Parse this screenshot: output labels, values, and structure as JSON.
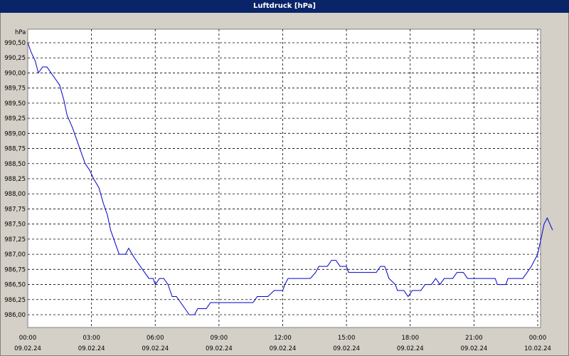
{
  "window": {
    "title": "Luftdruck [hPa]"
  },
  "colors": {
    "line": "#0000cc",
    "titlebar": "#0a246a",
    "plot_bg": "#ffffff",
    "window_bg": "#d4d0c8"
  },
  "chart_data": {
    "type": "line",
    "title": "Luftdruck [hPa]",
    "y_unit_label": "hPa",
    "ylim": [
      985.875,
      990.5
    ],
    "y_ticks": [
      "990,50",
      "990,25",
      "990,00",
      "989,75",
      "989,50",
      "989,25",
      "989,00",
      "988,75",
      "988,50",
      "988,25",
      "988,00",
      "987,75",
      "987,50",
      "987,25",
      "987,00",
      "986,75",
      "986,50",
      "986,25",
      "986,00"
    ],
    "y_tick_values": [
      990.5,
      990.25,
      990.0,
      989.75,
      989.5,
      989.25,
      989.0,
      988.75,
      988.5,
      988.25,
      988.0,
      987.75,
      987.5,
      987.25,
      987.0,
      986.75,
      986.5,
      986.25,
      986.0
    ],
    "x_range_hours": [
      0,
      24
    ],
    "x_ticks": [
      {
        "hour": 0,
        "time": "00:00",
        "date": "09.02.24"
      },
      {
        "hour": 3,
        "time": "03:00",
        "date": "09.02.24"
      },
      {
        "hour": 6,
        "time": "06:00",
        "date": "09.02.24"
      },
      {
        "hour": 9,
        "time": "09:00",
        "date": "09.02.24"
      },
      {
        "hour": 12,
        "time": "12:00",
        "date": "09.02.24"
      },
      {
        "hour": 15,
        "time": "15:00",
        "date": "09.02.24"
      },
      {
        "hour": 18,
        "time": "18:00",
        "date": "09.02.24"
      },
      {
        "hour": 21,
        "time": "21:00",
        "date": "09.02.24"
      },
      {
        "hour": 24,
        "time": "00:00",
        "date": "10.02.24"
      }
    ],
    "grid": true,
    "series": [
      {
        "points": [
          [
            0.0,
            990.5
          ],
          [
            0.15,
            990.35
          ],
          [
            0.35,
            990.2
          ],
          [
            0.5,
            990.0
          ],
          [
            0.7,
            990.1
          ],
          [
            0.9,
            990.1
          ],
          [
            1.1,
            990.0
          ],
          [
            1.3,
            989.9
          ],
          [
            1.5,
            989.8
          ],
          [
            1.7,
            989.55
          ],
          [
            1.85,
            989.3
          ],
          [
            2.1,
            989.1
          ],
          [
            2.3,
            988.9
          ],
          [
            2.5,
            988.7
          ],
          [
            2.7,
            988.5
          ],
          [
            2.9,
            988.4
          ],
          [
            3.1,
            988.25
          ],
          [
            3.35,
            988.1
          ],
          [
            3.55,
            987.85
          ],
          [
            3.75,
            987.65
          ],
          [
            3.9,
            987.4
          ],
          [
            4.1,
            987.2
          ],
          [
            4.3,
            987.0
          ],
          [
            4.6,
            987.0
          ],
          [
            4.75,
            987.1
          ],
          [
            5.0,
            986.95
          ],
          [
            5.3,
            986.8
          ],
          [
            5.5,
            986.7
          ],
          [
            5.7,
            986.6
          ],
          [
            5.9,
            986.6
          ],
          [
            6.0,
            986.5
          ],
          [
            6.2,
            986.6
          ],
          [
            6.4,
            986.6
          ],
          [
            6.6,
            986.5
          ],
          [
            6.8,
            986.3
          ],
          [
            7.0,
            986.3
          ],
          [
            7.2,
            986.2
          ],
          [
            7.4,
            986.1
          ],
          [
            7.6,
            986.0
          ],
          [
            7.85,
            986.0
          ],
          [
            8.0,
            986.1
          ],
          [
            8.4,
            986.1
          ],
          [
            8.6,
            986.2
          ],
          [
            9.0,
            986.2
          ],
          [
            10.0,
            986.2
          ],
          [
            10.6,
            986.2
          ],
          [
            10.8,
            986.3
          ],
          [
            11.3,
            986.3
          ],
          [
            11.6,
            986.4
          ],
          [
            12.0,
            986.4
          ],
          [
            12.1,
            986.5
          ],
          [
            12.25,
            986.6
          ],
          [
            13.0,
            986.6
          ],
          [
            13.3,
            986.6
          ],
          [
            13.55,
            986.7
          ],
          [
            13.7,
            986.8
          ],
          [
            14.1,
            986.8
          ],
          [
            14.3,
            986.9
          ],
          [
            14.5,
            986.9
          ],
          [
            14.7,
            986.8
          ],
          [
            15.0,
            986.8
          ],
          [
            15.1,
            986.7
          ],
          [
            16.0,
            986.7
          ],
          [
            16.4,
            986.7
          ],
          [
            16.6,
            986.8
          ],
          [
            16.8,
            986.8
          ],
          [
            17.0,
            986.6
          ],
          [
            17.3,
            986.5
          ],
          [
            17.4,
            986.4
          ],
          [
            17.7,
            986.4
          ],
          [
            17.9,
            986.3
          ],
          [
            18.1,
            986.4
          ],
          [
            18.5,
            986.4
          ],
          [
            18.7,
            986.5
          ],
          [
            19.0,
            986.5
          ],
          [
            19.2,
            986.6
          ],
          [
            19.4,
            986.5
          ],
          [
            19.6,
            986.6
          ],
          [
            20.0,
            986.6
          ],
          [
            20.2,
            986.7
          ],
          [
            20.5,
            986.7
          ],
          [
            20.7,
            986.6
          ],
          [
            21.0,
            986.6
          ],
          [
            22.0,
            986.6
          ],
          [
            22.1,
            986.5
          ],
          [
            22.2,
            986.5
          ],
          [
            22.5,
            986.5
          ],
          [
            22.6,
            986.6
          ],
          [
            23.3,
            986.6
          ],
          [
            23.5,
            986.7
          ],
          [
            23.7,
            986.8
          ],
          [
            24.0,
            987.0
          ],
          [
            24.3,
            987.5
          ],
          [
            24.45,
            987.6
          ],
          [
            24.7,
            987.4
          ]
        ]
      }
    ]
  }
}
